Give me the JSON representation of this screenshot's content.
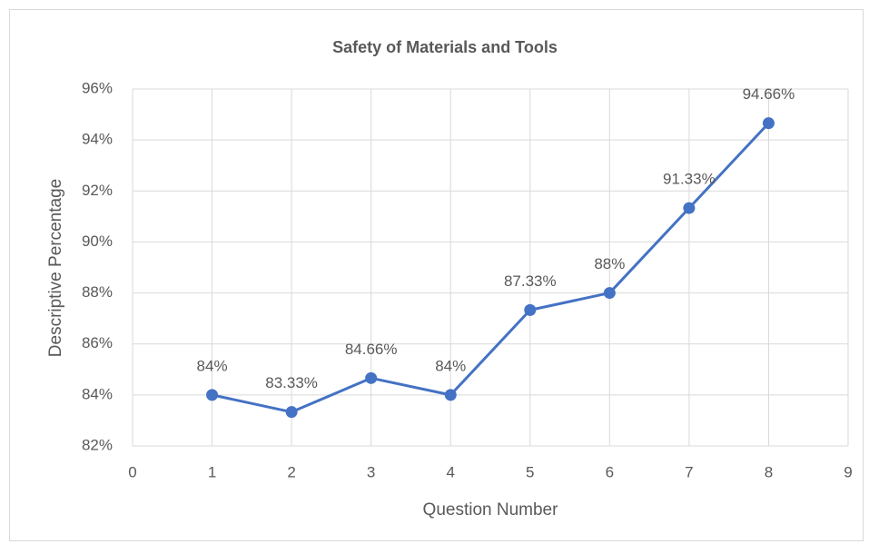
{
  "chart_data": {
    "type": "line",
    "title": "Safety of Materials and Tools",
    "xlabel": "Question Number",
    "ylabel": "Descriptive Percentage",
    "x": [
      1,
      2,
      3,
      4,
      5,
      6,
      7,
      8
    ],
    "series": [
      {
        "name": "Descriptive Percentage",
        "color": "#4472c4",
        "values": [
          84,
          83.33,
          84.66,
          84,
          87.33,
          88,
          91.33,
          94.66
        ],
        "value_labels": [
          "84%",
          "83.33%",
          "84.66%",
          "84%",
          "87.33%",
          "88%",
          "91.33%",
          "94.66%"
        ]
      }
    ],
    "xlim": [
      0,
      9
    ],
    "xticks": [
      0,
      1,
      2,
      3,
      4,
      5,
      6,
      7,
      8,
      9
    ],
    "ylim": [
      82,
      96
    ],
    "yticks": [
      {
        "value": 82,
        "label": "82%"
      },
      {
        "value": 84,
        "label": "84%"
      },
      {
        "value": 86,
        "label": "86%"
      },
      {
        "value": 88,
        "label": "88%"
      },
      {
        "value": 90,
        "label": "90%"
      },
      {
        "value": 92,
        "label": "92%"
      },
      {
        "value": 94,
        "label": "94%"
      },
      {
        "value": 96,
        "label": "96%"
      }
    ],
    "grid": true,
    "legend": false
  }
}
